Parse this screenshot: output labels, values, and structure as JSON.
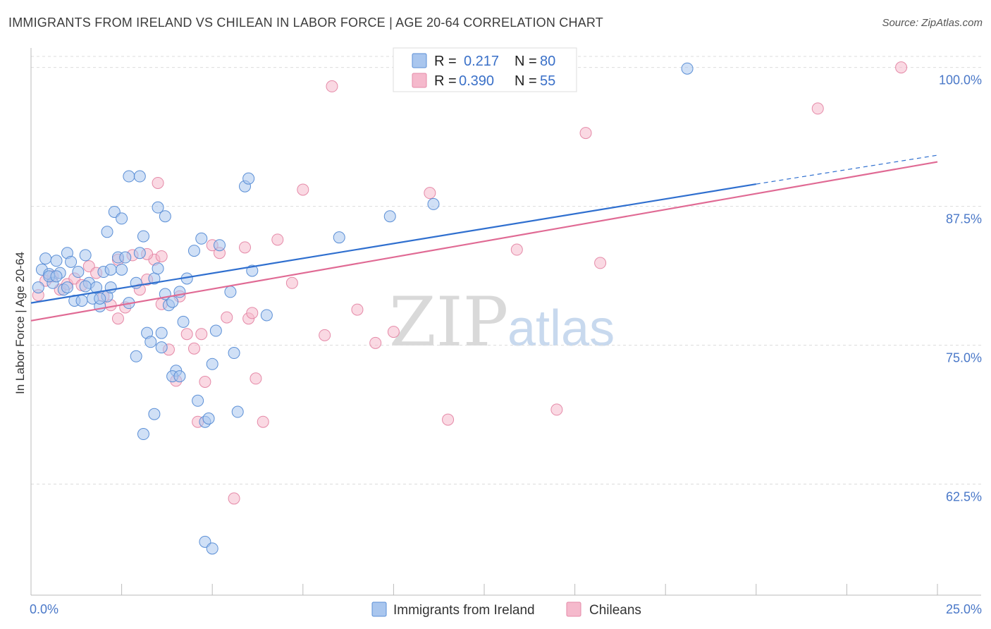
{
  "title": "IMMIGRANTS FROM IRELAND VS CHILEAN IN LABOR FORCE | AGE 20-64 CORRELATION CHART",
  "source": "Source: ZipAtlas.com",
  "colors": {
    "ireland_fill": "#a9c6ee",
    "ireland_stroke": "#5b8fd6",
    "ireland_line": "#2f6fcf",
    "chile_fill": "#f5b9cc",
    "chile_stroke": "#e58aa8",
    "chile_line": "#e06a94",
    "grid": "#dcdcdc",
    "tick_text": "#4a78c8"
  },
  "legend": {
    "r_label": "R =",
    "n_label": "N =",
    "rows": [
      {
        "r": "0.217",
        "n": "80"
      },
      {
        "r": "0.390",
        "n": "55"
      }
    ]
  },
  "watermark": {
    "zip": "ZIP",
    "atlas": "atlas"
  },
  "chart_data": {
    "type": "scatter",
    "title": "IMMIGRANTS FROM IRELAND VS CHILEAN IN LABOR FORCE | AGE 20-64 CORRELATION CHART",
    "xlabel": "",
    "ylabel": "In Labor Force | Age 20-64",
    "xlim": [
      0,
      25
    ],
    "ylim": [
      52.5,
      101.5
    ],
    "x_tick_labels": {
      "left": "0.0%",
      "right": "25.0%"
    },
    "y_ticks": [
      {
        "value": 62.5,
        "label": "62.5%"
      },
      {
        "value": 75.0,
        "label": "75.0%"
      },
      {
        "value": 87.5,
        "label": "87.5%"
      },
      {
        "value": 100.0,
        "label": "100.0%"
      }
    ],
    "series": [
      {
        "name": "Immigrants from Ireland",
        "r": 0.217,
        "n": 80,
        "trend": {
          "x0": 0,
          "y0": 78.8,
          "x1": 20,
          "y1": 89.5,
          "dashed_to_x": 25,
          "dashed_to_y": 92.1
        },
        "points": [
          [
            0.2,
            80.2
          ],
          [
            0.3,
            81.8
          ],
          [
            0.4,
            82.8
          ],
          [
            0.5,
            81.4
          ],
          [
            0.6,
            80.6
          ],
          [
            0.7,
            82.6
          ],
          [
            0.8,
            81.5
          ],
          [
            0.9,
            80.0
          ],
          [
            1.0,
            83.3
          ],
          [
            1.1,
            82.5
          ],
          [
            1.2,
            79.0
          ],
          [
            1.3,
            81.6
          ],
          [
            1.4,
            79.0
          ],
          [
            1.5,
            83.1
          ],
          [
            1.6,
            80.6
          ],
          [
            1.7,
            79.2
          ],
          [
            1.8,
            80.2
          ],
          [
            1.9,
            78.5
          ],
          [
            2.0,
            81.6
          ],
          [
            2.1,
            79.4
          ],
          [
            2.2,
            80.2
          ],
          [
            0.5,
            81.2
          ],
          [
            0.7,
            81.2
          ],
          [
            1.0,
            80.2
          ],
          [
            1.5,
            80.3
          ],
          [
            1.9,
            79.2
          ],
          [
            2.2,
            81.8
          ],
          [
            2.4,
            82.9
          ],
          [
            2.5,
            81.8
          ],
          [
            2.6,
            82.9
          ],
          [
            2.7,
            78.8
          ],
          [
            2.9,
            80.6
          ],
          [
            3.0,
            83.3
          ],
          [
            3.1,
            84.8
          ],
          [
            3.2,
            76.1
          ],
          [
            3.3,
            75.3
          ],
          [
            3.4,
            81.0
          ],
          [
            3.5,
            81.9
          ],
          [
            3.6,
            76.1
          ],
          [
            3.7,
            79.6
          ],
          [
            3.8,
            78.6
          ],
          [
            3.9,
            78.9
          ],
          [
            4.0,
            72.7
          ],
          [
            4.1,
            79.8
          ],
          [
            4.2,
            77.1
          ],
          [
            4.3,
            81.0
          ],
          [
            4.5,
            83.5
          ],
          [
            4.7,
            84.6
          ],
          [
            4.8,
            68.1
          ],
          [
            4.9,
            68.4
          ],
          [
            5.0,
            73.3
          ],
          [
            5.1,
            76.3
          ],
          [
            5.2,
            84.0
          ],
          [
            5.5,
            79.8
          ],
          [
            5.6,
            74.3
          ],
          [
            5.7,
            69.0
          ],
          [
            5.9,
            89.3
          ],
          [
            6.0,
            90.0
          ],
          [
            6.1,
            81.7
          ],
          [
            6.5,
            77.7
          ],
          [
            2.1,
            85.2
          ],
          [
            2.3,
            87.0
          ],
          [
            2.5,
            86.4
          ],
          [
            2.7,
            90.2
          ],
          [
            2.9,
            74.0
          ],
          [
            3.0,
            90.2
          ],
          [
            3.5,
            87.4
          ],
          [
            3.7,
            86.6
          ],
          [
            3.1,
            67.0
          ],
          [
            3.4,
            68.8
          ],
          [
            3.6,
            74.8
          ],
          [
            3.9,
            72.2
          ],
          [
            4.1,
            72.2
          ],
          [
            4.6,
            70.0
          ],
          [
            4.8,
            57.3
          ],
          [
            5.0,
            56.7
          ],
          [
            8.5,
            84.7
          ],
          [
            9.9,
            86.6
          ],
          [
            11.1,
            87.7
          ],
          [
            18.1,
            99.9
          ]
        ]
      },
      {
        "name": "Chileans",
        "r": 0.39,
        "n": 55,
        "trend": {
          "x0": 0,
          "y0": 77.2,
          "x1": 25,
          "y1": 91.5
        },
        "points": [
          [
            0.2,
            79.5
          ],
          [
            0.4,
            80.8
          ],
          [
            0.6,
            81.2
          ],
          [
            0.8,
            80.0
          ],
          [
            1.0,
            80.5
          ],
          [
            1.2,
            81.0
          ],
          [
            1.4,
            80.4
          ],
          [
            1.6,
            82.1
          ],
          [
            1.8,
            81.5
          ],
          [
            2.0,
            79.4
          ],
          [
            2.2,
            78.6
          ],
          [
            2.4,
            77.4
          ],
          [
            2.6,
            78.4
          ],
          [
            2.8,
            83.1
          ],
          [
            3.0,
            80.0
          ],
          [
            3.2,
            80.9
          ],
          [
            3.4,
            82.7
          ],
          [
            3.6,
            78.7
          ],
          [
            3.8,
            74.6
          ],
          [
            4.0,
            71.8
          ],
          [
            4.1,
            79.4
          ],
          [
            4.3,
            76.0
          ],
          [
            4.5,
            74.7
          ],
          [
            4.6,
            68.1
          ],
          [
            4.8,
            71.7
          ],
          [
            5.0,
            84.0
          ],
          [
            5.2,
            83.3
          ],
          [
            5.4,
            77.5
          ],
          [
            5.6,
            61.2
          ],
          [
            5.9,
            83.8
          ],
          [
            6.0,
            77.4
          ],
          [
            6.1,
            77.9
          ],
          [
            6.2,
            72.0
          ],
          [
            6.4,
            68.1
          ],
          [
            6.8,
            84.5
          ],
          [
            7.2,
            80.6
          ],
          [
            7.5,
            89.0
          ],
          [
            8.1,
            75.9
          ],
          [
            8.3,
            98.3
          ],
          [
            9.0,
            78.2
          ],
          [
            9.5,
            75.2
          ],
          [
            10.0,
            76.2
          ],
          [
            11.0,
            88.7
          ],
          [
            11.5,
            68.3
          ],
          [
            13.4,
            83.6
          ],
          [
            14.5,
            69.2
          ],
          [
            15.3,
            94.1
          ],
          [
            15.7,
            82.4
          ],
          [
            21.7,
            96.3
          ],
          [
            24.0,
            100.0
          ],
          [
            3.5,
            89.6
          ],
          [
            3.6,
            83.0
          ],
          [
            4.7,
            76.0
          ],
          [
            3.2,
            83.2
          ],
          [
            2.4,
            82.7
          ]
        ]
      }
    ]
  }
}
